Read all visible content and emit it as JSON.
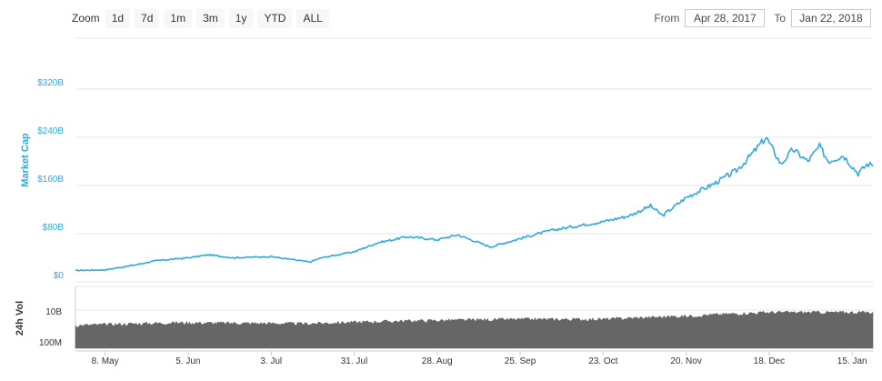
{
  "zoom": {
    "label": "Zoom",
    "buttons": [
      "1d",
      "7d",
      "1m",
      "3m",
      "1y",
      "YTD",
      "ALL"
    ]
  },
  "range": {
    "from_label": "From",
    "from_value": "Apr 28, 2017",
    "to_label": "To",
    "to_value": "Jan 22, 2018"
  },
  "colors": {
    "line": "#2fa9de",
    "volume": "#666666",
    "grid": "#e6e6e6"
  },
  "chart_data": [
    {
      "type": "line",
      "ylabel": "Market Cap",
      "yticks": [
        "$0",
        "$80B",
        "$160B",
        "$240B",
        "$320B"
      ],
      "ylim": [
        0,
        320
      ],
      "xticks": [
        "8. May",
        "5. Jun",
        "3. Jul",
        "31. Jul",
        "28. Aug",
        "25. Sep",
        "23. Oct",
        "20. Nov",
        "18. Dec",
        "15. Jan"
      ],
      "xlim": [
        "2017-04-28",
        "2018-01-22"
      ],
      "grid": true,
      "series": [
        {
          "x": [
            "2017-04-28",
            "2017-05-08",
            "2017-05-18",
            "2017-05-25",
            "2017-06-05",
            "2017-06-12",
            "2017-06-20",
            "2017-07-03",
            "2017-07-16",
            "2017-07-20",
            "2017-07-31",
            "2017-08-08",
            "2017-08-18",
            "2017-08-28",
            "2017-09-04",
            "2017-09-15",
            "2017-09-25",
            "2017-10-05",
            "2017-10-13",
            "2017-10-23",
            "2017-11-01",
            "2017-11-08",
            "2017-11-12",
            "2017-11-20",
            "2017-11-29",
            "2017-12-07",
            "2017-12-10",
            "2017-12-17",
            "2017-12-22",
            "2017-12-26",
            "2017-12-31",
            "2018-01-04",
            "2018-01-07",
            "2018-01-12",
            "2018-01-17",
            "2018-01-20",
            "2018-01-22"
          ],
          "y": [
            19,
            20,
            28,
            35,
            40,
            45,
            40,
            42,
            33,
            40,
            50,
            65,
            75,
            70,
            78,
            58,
            72,
            85,
            92,
            100,
            110,
            126,
            110,
            140,
            162,
            185,
            200,
            240,
            195,
            220,
            200,
            225,
            200,
            210,
            180,
            195,
            195
          ]
        }
      ]
    },
    {
      "type": "area",
      "ylabel": "24h Vol",
      "yticks": [
        "100M",
        "10B"
      ],
      "scale": "log",
      "ylim": [
        "100M",
        "10B"
      ],
      "grid": true,
      "series": [
        {
          "x": [
            "2017-04-28",
            "2017-06-01",
            "2017-07-15",
            "2017-08-20",
            "2017-09-25",
            "2017-10-23",
            "2017-11-20",
            "2017-12-18",
            "2018-01-22"
          ],
          "y": [
            "1B",
            "1.5B",
            "1.3B",
            "2B",
            "2.5B",
            "2.5B",
            "4B",
            "7B",
            "7B"
          ]
        }
      ]
    }
  ]
}
